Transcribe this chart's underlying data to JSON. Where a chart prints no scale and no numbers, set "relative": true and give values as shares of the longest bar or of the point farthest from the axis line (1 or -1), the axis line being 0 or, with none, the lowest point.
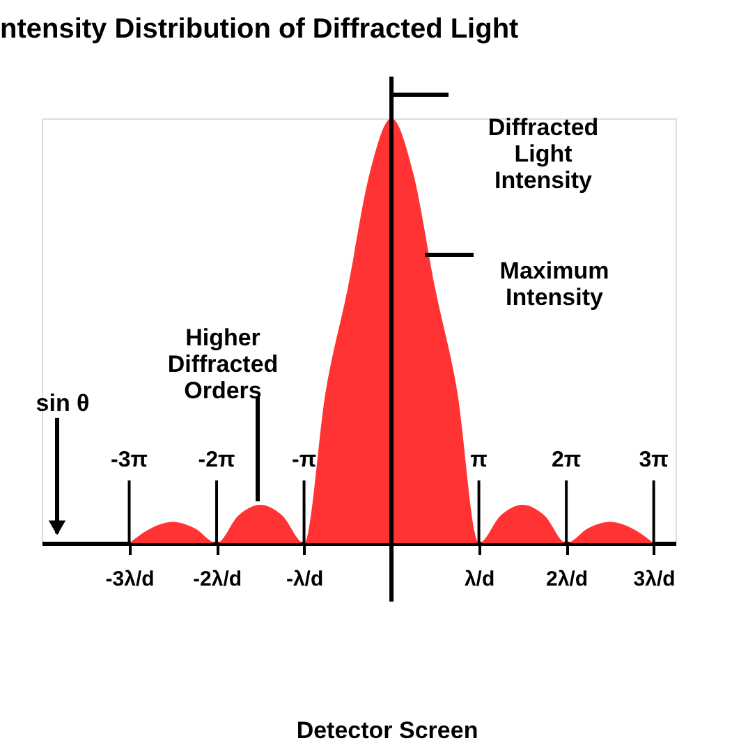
{
  "chart_data": {
    "type": "area",
    "relative": true,
    "title": "ntensity Distribution of Diffracted Light",
    "categories": [
      null,
      null,
      null,
      null,
      "-3λ/d",
      null,
      null,
      null,
      "-2λ/d",
      null,
      null,
      null,
      "-λ/d",
      null,
      null,
      null,
      null,
      null,
      null,
      null,
      "λ/d",
      null,
      null,
      null,
      "2λ/d",
      null,
      null,
      null,
      "3λ/d",
      null
    ],
    "series": [
      {
        "color": "#ff3333",
        "values": [
          null,
          null,
          null,
          null,
          0,
          0.035,
          0.05,
          0.035,
          0,
          0.065,
          0.09,
          0.065,
          0,
          0.36,
          0.6,
          0.87,
          1,
          0.87,
          0.6,
          0.36,
          0,
          0.065,
          0.09,
          0.065,
          0,
          0.035,
          0.05,
          0.035,
          0,
          null
        ]
      }
    ],
    "annotations": [
      "sin θ",
      "Detector Screen",
      "Diffracted Light Intensity",
      "Maximum Intensity",
      "Higher Diffracted Orders",
      {
        "text": "-3π",
        "x": "-3λ/d"
      },
      {
        "text": "-2π",
        "x": "-2λ/d"
      },
      {
        "text": "-π",
        "x": "-λ/d"
      },
      {
        "text": "π",
        "x": "λ/d"
      },
      {
        "text": "2π",
        "x": "2λ/d"
      },
      {
        "text": "3π",
        "x": "3λ/d"
      }
    ]
  }
}
